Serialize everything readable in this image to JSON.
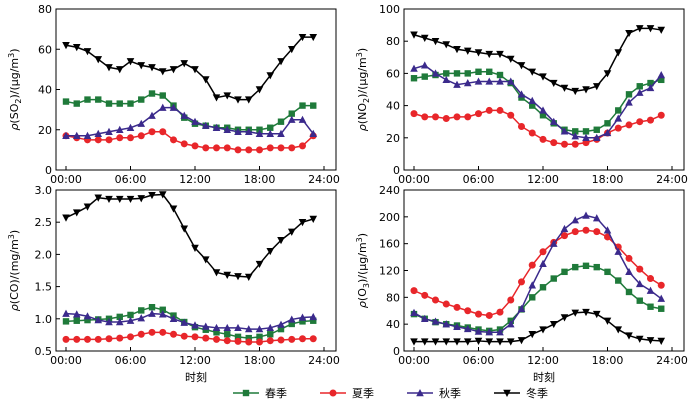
{
  "figure": {
    "xlabel": "时刻",
    "xticks": [
      "00:00",
      "06:00",
      "12:00",
      "18:00",
      "24:00"
    ]
  },
  "legend": [
    {
      "name": "春季",
      "color": "#1f7a3a",
      "marker": "square"
    },
    {
      "name": "夏季",
      "color": "#e8262a",
      "marker": "circle"
    },
    {
      "name": "秋季",
      "color": "#3b2a8c",
      "marker": "triangle-up"
    },
    {
      "name": "冬季",
      "color": "#000000",
      "marker": "triangle-down"
    }
  ],
  "chart_data": [
    {
      "type": "line",
      "id": "so2",
      "ylabel_parts": [
        "ρ",
        "(SO",
        "2",
        ")/(μg/m",
        "3",
        ")"
      ],
      "ylim": [
        0,
        80
      ],
      "yticks": [
        0,
        20,
        40,
        60,
        80
      ],
      "xlim": [
        0,
        24
      ],
      "x": [
        0,
        1,
        2,
        3,
        4,
        5,
        6,
        7,
        8,
        9,
        10,
        11,
        12,
        13,
        14,
        15,
        16,
        17,
        18,
        19,
        20,
        21,
        22,
        23
      ],
      "series": [
        {
          "name": "春季",
          "values": [
            34,
            33,
            35,
            35,
            33,
            33,
            33,
            35,
            38,
            37,
            32,
            26,
            23,
            22,
            21,
            21,
            20,
            20,
            20,
            21,
            24,
            28,
            32,
            32
          ]
        },
        {
          "name": "夏季",
          "values": [
            17,
            16,
            15,
            15,
            15,
            16,
            16,
            17,
            19,
            19,
            15,
            13,
            12,
            11,
            11,
            11,
            10,
            10,
            10,
            11,
            11,
            11,
            12,
            17
          ]
        },
        {
          "name": "秋季",
          "values": [
            17,
            17,
            17,
            18,
            19,
            20,
            21,
            23,
            27,
            31,
            31,
            27,
            24,
            22,
            21,
            20,
            19,
            19,
            18,
            18,
            18,
            25,
            25,
            18
          ]
        },
        {
          "name": "冬季",
          "values": [
            62,
            61,
            59,
            55,
            51,
            50,
            54,
            52,
            51,
            49,
            50,
            53,
            50,
            45,
            36,
            37,
            35,
            35,
            40,
            47,
            54,
            60,
            66,
            66
          ]
        }
      ]
    },
    {
      "type": "line",
      "id": "no2",
      "ylabel_parts": [
        "ρ",
        "(NO",
        "2",
        ")/(μg/m",
        "3",
        ")"
      ],
      "ylim": [
        0,
        100
      ],
      "yticks": [
        0,
        20,
        40,
        60,
        80,
        100
      ],
      "xlim": [
        0,
        24
      ],
      "x": [
        0,
        1,
        2,
        3,
        4,
        5,
        6,
        7,
        8,
        9,
        10,
        11,
        12,
        13,
        14,
        15,
        16,
        17,
        18,
        19,
        20,
        21,
        22,
        23
      ],
      "series": [
        {
          "name": "春季",
          "values": [
            57,
            58,
            59,
            60,
            60,
            60,
            61,
            61,
            59,
            54,
            45,
            40,
            34,
            29,
            25,
            24,
            24,
            25,
            29,
            37,
            47,
            52,
            54,
            56
          ]
        },
        {
          "name": "夏季",
          "values": [
            35,
            33,
            33,
            32,
            33,
            33,
            35,
            37,
            37,
            34,
            27,
            23,
            19,
            17,
            16,
            16,
            17,
            19,
            23,
            26,
            28,
            30,
            31,
            34
          ]
        },
        {
          "name": "秋季",
          "values": [
            63,
            65,
            60,
            56,
            53,
            54,
            55,
            55,
            55,
            55,
            47,
            43,
            37,
            30,
            24,
            21,
            20,
            20,
            23,
            32,
            42,
            48,
            51,
            59
          ]
        },
        {
          "name": "冬季",
          "values": [
            84,
            82,
            80,
            78,
            75,
            74,
            73,
            72,
            72,
            69,
            65,
            61,
            58,
            54,
            51,
            49,
            50,
            52,
            60,
            73,
            85,
            88,
            88,
            87
          ]
        }
      ]
    },
    {
      "type": "line",
      "id": "co",
      "ylabel_parts": [
        "ρ",
        "(CO)/(mg/m",
        "3",
        ")"
      ],
      "ylim": [
        0.5,
        3.0
      ],
      "yticks": [
        0.5,
        1.0,
        1.5,
        2.0,
        2.5,
        3.0
      ],
      "ytick_labels": [
        "0.5",
        "1.0",
        "1.5",
        "2.0",
        "2.5",
        "3.0"
      ],
      "xlim": [
        0,
        24
      ],
      "x": [
        0,
        1,
        2,
        3,
        4,
        5,
        6,
        7,
        8,
        9,
        10,
        11,
        12,
        13,
        14,
        15,
        16,
        17,
        18,
        19,
        20,
        21,
        22,
        23
      ],
      "series": [
        {
          "name": "春季",
          "values": [
            0.96,
            0.97,
            0.98,
            0.99,
            1.0,
            1.03,
            1.06,
            1.13,
            1.18,
            1.14,
            1.05,
            0.95,
            0.87,
            0.83,
            0.79,
            0.76,
            0.72,
            0.7,
            0.72,
            0.76,
            0.84,
            0.92,
            0.96,
            0.97
          ]
        },
        {
          "name": "夏季",
          "values": [
            0.68,
            0.68,
            0.68,
            0.68,
            0.69,
            0.7,
            0.72,
            0.76,
            0.79,
            0.79,
            0.76,
            0.73,
            0.72,
            0.7,
            0.68,
            0.66,
            0.65,
            0.64,
            0.64,
            0.66,
            0.67,
            0.68,
            0.69,
            0.69
          ]
        },
        {
          "name": "秋季",
          "values": [
            1.08,
            1.07,
            1.04,
            0.98,
            0.95,
            0.95,
            0.97,
            1.01,
            1.08,
            1.07,
            1.0,
            0.94,
            0.9,
            0.88,
            0.86,
            0.86,
            0.86,
            0.84,
            0.84,
            0.86,
            0.91,
            0.99,
            1.02,
            1.03
          ]
        },
        {
          "name": "冬季",
          "values": [
            2.57,
            2.65,
            2.74,
            2.88,
            2.86,
            2.86,
            2.86,
            2.87,
            2.92,
            2.93,
            2.71,
            2.4,
            2.1,
            1.92,
            1.72,
            1.68,
            1.66,
            1.65,
            1.85,
            2.05,
            2.22,
            2.35,
            2.5,
            2.55
          ]
        }
      ]
    },
    {
      "type": "line",
      "id": "o3",
      "ylabel_parts": [
        "ρ",
        "(O",
        "3",
        ")/(μg/m",
        "3",
        ")"
      ],
      "ylim": [
        0,
        240
      ],
      "yticks": [
        0,
        40,
        80,
        120,
        160,
        200,
        240
      ],
      "xlim": [
        0,
        24
      ],
      "x": [
        0,
        1,
        2,
        3,
        4,
        5,
        6,
        7,
        8,
        9,
        10,
        11,
        12,
        13,
        14,
        15,
        16,
        17,
        18,
        19,
        20,
        21,
        22,
        23
      ],
      "series": [
        {
          "name": "春季",
          "values": [
            55,
            48,
            43,
            40,
            38,
            35,
            32,
            30,
            32,
            45,
            62,
            80,
            95,
            108,
            118,
            125,
            127,
            125,
            118,
            105,
            88,
            75,
            66,
            63
          ]
        },
        {
          "name": "夏季",
          "values": [
            90,
            83,
            76,
            70,
            65,
            60,
            55,
            53,
            58,
            76,
            103,
            128,
            148,
            162,
            172,
            178,
            180,
            178,
            170,
            155,
            138,
            122,
            108,
            98
          ]
        },
        {
          "name": "秋季",
          "values": [
            57,
            48,
            44,
            40,
            36,
            33,
            29,
            28,
            28,
            40,
            63,
            98,
            130,
            160,
            182,
            195,
            202,
            198,
            180,
            148,
            118,
            100,
            90,
            78
          ]
        },
        {
          "name": "冬季",
          "values": [
            14,
            14,
            14,
            14,
            14,
            14,
            15,
            14,
            14,
            14,
            16,
            25,
            32,
            40,
            50,
            57,
            58,
            55,
            45,
            32,
            23,
            18,
            16,
            15
          ]
        }
      ]
    }
  ]
}
